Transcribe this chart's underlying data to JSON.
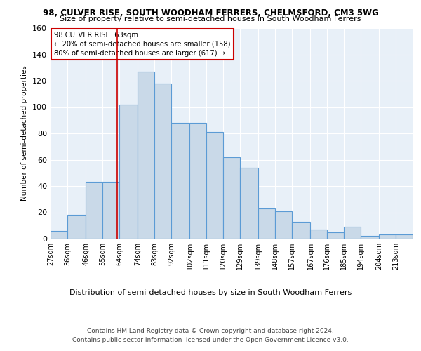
{
  "title1": "98, CULVER RISE, SOUTH WOODHAM FERRERS, CHELMSFORD, CM3 5WG",
  "title2": "Size of property relative to semi-detached houses in South Woodham Ferrers",
  "xlabel": "Distribution of semi-detached houses by size in South Woodham Ferrers",
  "ylabel": "Number of semi-detached properties",
  "footer1": "Contains HM Land Registry data © Crown copyright and database right 2024.",
  "footer2": "Contains public sector information licensed under the Open Government Licence v3.0.",
  "annotation_title": "98 CULVER RISE: 63sqm",
  "annotation_line1": "← 20% of semi-detached houses are smaller (158)",
  "annotation_line2": "80% of semi-detached houses are larger (617) →",
  "marker_value": 63,
  "bar_labels": [
    "27sqm",
    "36sqm",
    "46sqm",
    "55sqm",
    "64sqm",
    "74sqm",
    "83sqm",
    "92sqm",
    "102sqm",
    "111sqm",
    "120sqm",
    "129sqm",
    "139sqm",
    "148sqm",
    "157sqm",
    "167sqm",
    "176sqm",
    "185sqm",
    "194sqm",
    "204sqm",
    "213sqm"
  ],
  "bar_left_edges": [
    27,
    36,
    46,
    55,
    64,
    74,
    83,
    92,
    102,
    111,
    120,
    129,
    139,
    148,
    157,
    167,
    176,
    185,
    194,
    204,
    213
  ],
  "bar_widths": [
    9,
    10,
    9,
    9,
    10,
    9,
    9,
    10,
    9,
    9,
    9,
    10,
    9,
    9,
    10,
    9,
    9,
    9,
    10,
    9,
    9
  ],
  "bar_heights": [
    6,
    18,
    43,
    43,
    102,
    127,
    118,
    88,
    88,
    81,
    62,
    54,
    23,
    21,
    13,
    7,
    5,
    9,
    2,
    3,
    3
  ],
  "bar_color": "#c9d9e8",
  "bar_edge_color": "#5b9bd5",
  "marker_line_color": "#cc0000",
  "annotation_box_color": "#cc0000",
  "background_color": "#e8f0f8",
  "ylim": [
    0,
    160
  ],
  "yticks": [
    0,
    20,
    40,
    60,
    80,
    100,
    120,
    140,
    160
  ]
}
